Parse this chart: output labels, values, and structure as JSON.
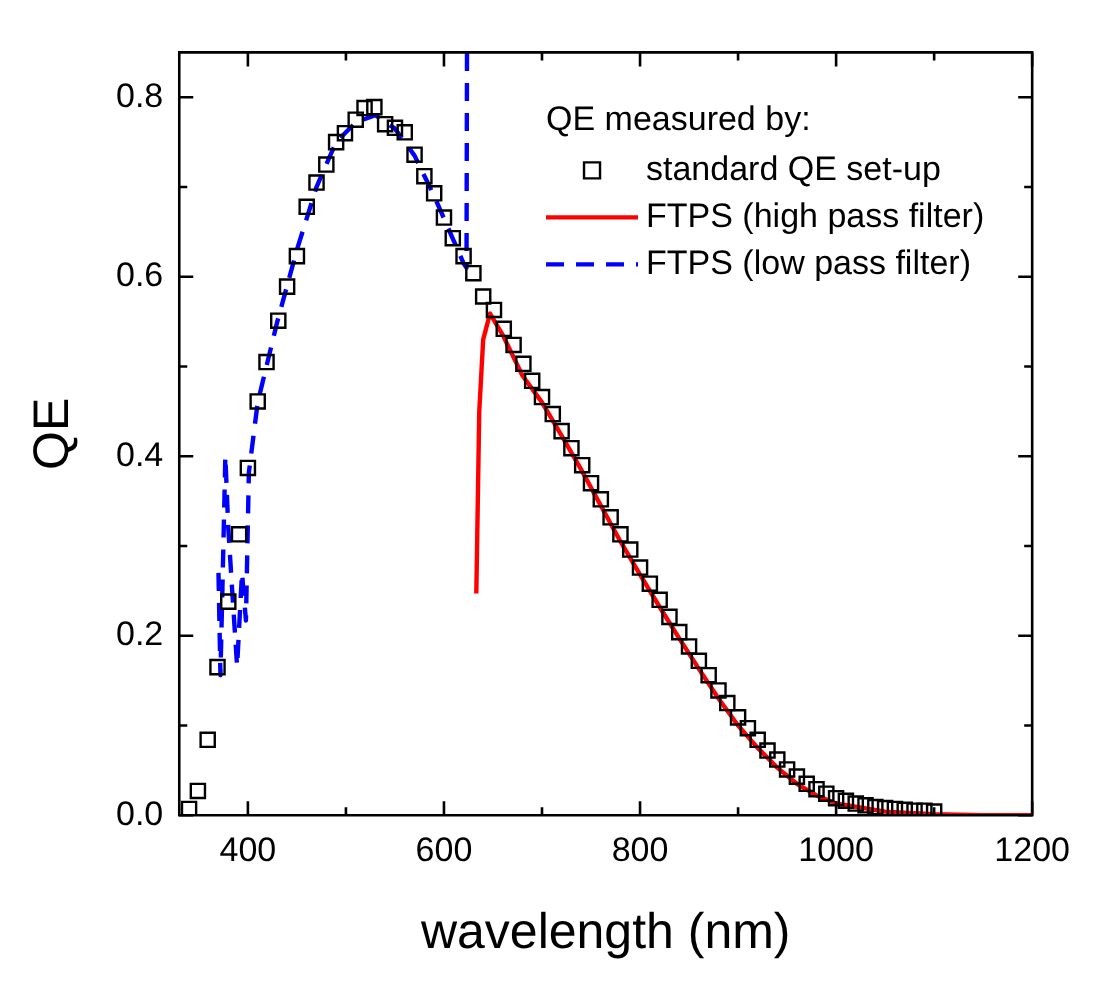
{
  "chart_data": {
    "type": "line",
    "xlabel": "wavelength (nm)",
    "ylabel": "QE",
    "legend_title": "QE measured by:",
    "legend": "top right",
    "grid": false,
    "xlim": [
      330,
      1200
    ],
    "xticks": [
      400,
      {
        "value": 500,
        "label": null
      },
      600,
      {
        "value": 700,
        "label": null
      },
      800,
      {
        "value": 900,
        "label": null
      },
      1000,
      {
        "value": 1100,
        "label": null
      },
      1200
    ],
    "ylim": [
      0,
      0.85
    ],
    "yticks": [
      {
        "value": 0,
        "label": "0.0"
      },
      {
        "value": 0.1,
        "label": null
      },
      {
        "value": 0.2,
        "label": "0.2"
      },
      {
        "value": 0.3,
        "label": null
      },
      {
        "value": 0.4,
        "label": "0.4"
      },
      {
        "value": 0.5,
        "label": null
      },
      {
        "value": 0.6,
        "label": "0.6"
      },
      {
        "value": 0.7,
        "label": null
      },
      {
        "value": 0.8,
        "label": "0.8"
      }
    ],
    "series": [
      {
        "name": "standard QE set-up",
        "type": "scatter",
        "marker": "square",
        "color": "#000000",
        "x": [
          340,
          349,
          359,
          369,
          380,
          391,
          400,
          410,
          419,
          431,
          440,
          450,
          460,
          470,
          480,
          490,
          499,
          510,
          519,
          529,
          540,
          550,
          560,
          570,
          580,
          590,
          600,
          609,
          620,
          630,
          640,
          651,
          661,
          671,
          681,
          690,
          700,
          711,
          720,
          730,
          741,
          750,
          760,
          770,
          780,
          790,
          800,
          810,
          820,
          830,
          840,
          850,
          860,
          870,
          880,
          889,
          900,
          910,
          920,
          930,
          940,
          950,
          960,
          970,
          980,
          990,
          1000,
          1010,
          1020,
          1030,
          1040,
          1050,
          1060,
          1070,
          1080,
          1090,
          1100
        ],
        "values": [
          0.007,
          0.027,
          0.084,
          0.165,
          0.238,
          0.313,
          0.387,
          0.461,
          0.505,
          0.551,
          0.589,
          0.623,
          0.678,
          0.705,
          0.725,
          0.75,
          0.76,
          0.775,
          0.788,
          0.789,
          0.77,
          0.766,
          0.761,
          0.736,
          0.712,
          0.693,
          0.666,
          0.643,
          0.623,
          0.604,
          0.578,
          0.563,
          0.542,
          0.524,
          0.503,
          0.484,
          0.466,
          0.447,
          0.428,
          0.409,
          0.39,
          0.37,
          0.352,
          0.332,
          0.313,
          0.296,
          0.276,
          0.258,
          0.24,
          0.221,
          0.204,
          0.188,
          0.172,
          0.156,
          0.139,
          0.125,
          0.109,
          0.097,
          0.084,
          0.072,
          0.062,
          0.051,
          0.043,
          0.035,
          0.029,
          0.024,
          0.019,
          0.016,
          0.013,
          0.011,
          0.009,
          0.008,
          0.007,
          0.006,
          0.005,
          0.005,
          0.004
        ]
      },
      {
        "name": "FTPS (high pass filter)",
        "type": "line",
        "line_style": "solid",
        "marker": "none",
        "color": "#ff0000",
        "x": [
          633,
          636,
          640,
          647,
          660,
          680,
          700,
          720,
          740,
          760,
          780,
          800,
          820,
          840,
          860,
          880,
          900,
          920,
          940,
          960,
          980,
          1000,
          1050,
          1100,
          1150,
          1200
        ],
        "values": [
          0.247,
          0.45,
          0.53,
          0.559,
          0.535,
          0.49,
          0.46,
          0.423,
          0.385,
          0.345,
          0.305,
          0.268,
          0.232,
          0.197,
          0.163,
          0.13,
          0.1,
          0.075,
          0.053,
          0.035,
          0.022,
          0.013,
          0.004,
          0.001,
          0.0,
          0.0
        ]
      },
      {
        "name": "FTPS (low pass filter)",
        "type": "line",
        "line_style": "dashed",
        "marker": "none",
        "color": "#0000ff",
        "x": [
          370,
          372,
          375,
          377,
          380,
          384,
          389,
          394,
          398,
          401,
          410,
          430,
          450,
          470,
          490,
          510,
          530,
          550,
          570,
          590,
          610,
          620,
          623,
          623.5
        ],
        "values": [
          0.27,
          0.156,
          0.3,
          0.4,
          0.32,
          0.25,
          0.166,
          0.27,
          0.217,
          0.382,
          0.46,
          0.55,
          0.63,
          0.7,
          0.75,
          0.772,
          0.78,
          0.765,
          0.735,
          0.69,
          0.64,
          0.615,
          0.61,
          0.85
        ]
      }
    ]
  }
}
